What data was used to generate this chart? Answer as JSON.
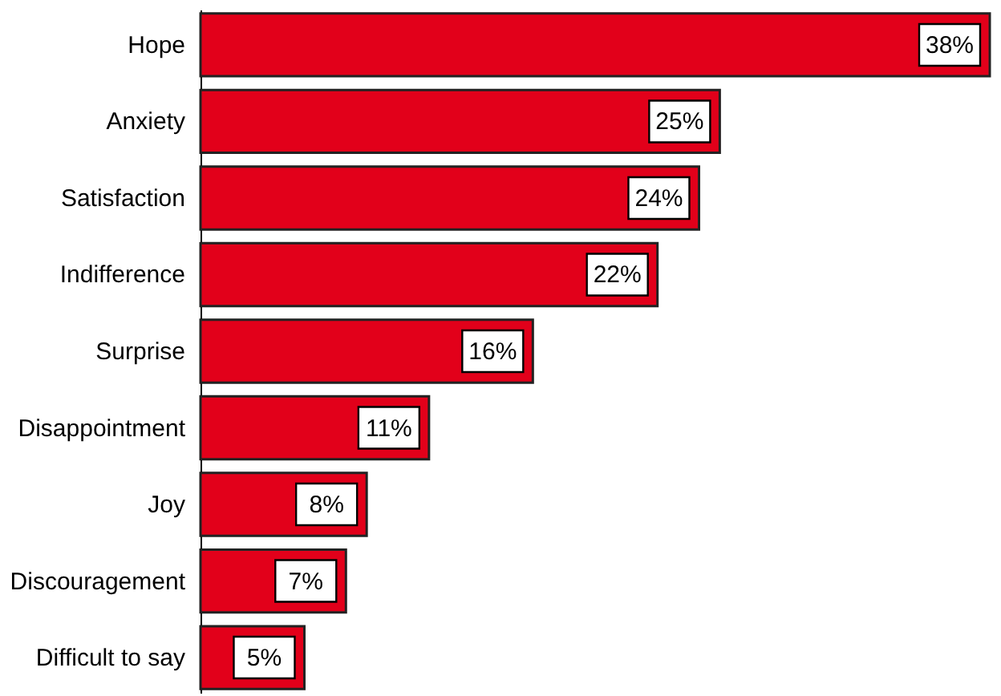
{
  "chart_data": {
    "type": "bar",
    "orientation": "horizontal",
    "categories": [
      "Hope",
      "Anxiety",
      "Satisfaction",
      "Indifference",
      "Surprise",
      "Disappointment",
      "Joy",
      "Discouragement",
      "Difficult to say"
    ],
    "values": [
      38,
      25,
      24,
      22,
      16,
      11,
      8,
      7,
      5
    ],
    "value_labels": [
      "38%",
      "25%",
      "24%",
      "22%",
      "16%",
      "11%",
      "8%",
      "7%",
      "5%"
    ],
    "color": "#e2001a",
    "grid": false
  }
}
